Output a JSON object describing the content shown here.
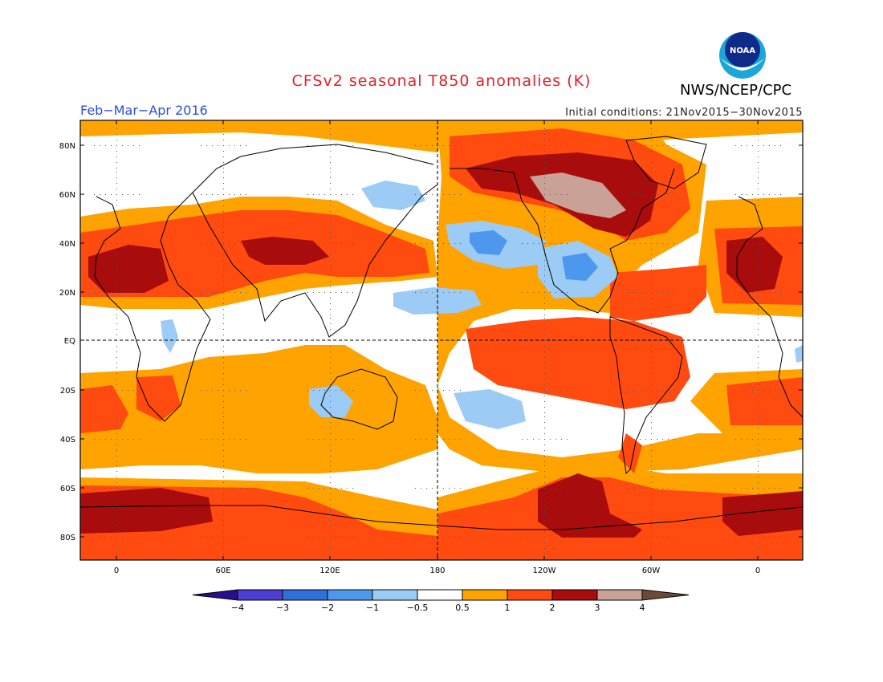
{
  "title": "CFSv2 seasonal T850 anomalies (K)",
  "agency": "NWS/NCEP/CPC",
  "logo_text": "NOAA",
  "period": "Feb−Mar−Apr 2016",
  "initial_conditions": "Initial conditions: 21Nov2015−30Nov2015",
  "lat_labels": [
    "80N",
    "60N",
    "40N",
    "20N",
    "EQ",
    "20S",
    "40S",
    "60S",
    "80S"
  ],
  "lon_labels": [
    "0",
    "60E",
    "120E",
    "180",
    "120W",
    "60W",
    "0"
  ],
  "colorbar": {
    "labels": [
      "−4",
      "−3",
      "−2",
      "−1",
      "−0.5",
      "0.5",
      "1",
      "2",
      "3",
      "4"
    ],
    "colors": [
      "#2a0f8a",
      "#4a3fd0",
      "#2f6fd8",
      "#4d98ee",
      "#9ccbf5",
      "#ffffff",
      "#ffa300",
      "#ff4a10",
      "#a80c0c",
      "#c9a196",
      "#6b4a3a"
    ]
  }
}
